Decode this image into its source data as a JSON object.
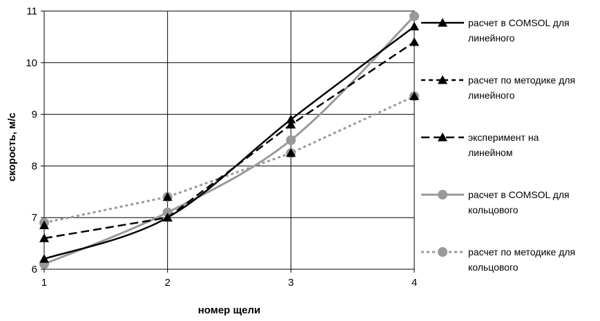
{
  "chart_data": {
    "type": "line",
    "title": "",
    "xlabel": "номер щели",
    "ylabel": "скорость, м/с",
    "x": [
      1,
      2,
      3,
      4
    ],
    "xlim": [
      1,
      4
    ],
    "ylim": [
      6,
      11
    ],
    "x_ticks": [
      "1",
      "2",
      "3",
      "4"
    ],
    "y_ticks": [
      "6",
      "7",
      "8",
      "9",
      "10",
      "11"
    ],
    "grid": true,
    "legend_position": "right",
    "series": [
      {
        "name": "расчет в COMSOL для линейного",
        "legend_lines": [
          "расчет в COMSOL для",
          "линейного"
        ],
        "values": [
          6.2,
          7.0,
          8.9,
          10.7
        ],
        "color": "#000000",
        "dash": "solid",
        "marker": "triangle",
        "smooth": true
      },
      {
        "name": "расчет по методике для линейного",
        "legend_lines": [
          "расчет по методике для",
          "линейного"
        ],
        "values": [
          6.85,
          7.4,
          8.25,
          9.35
        ],
        "color": "#000000",
        "dash": "short-dash",
        "marker": "triangle",
        "smooth": false,
        "line_hidden": true
      },
      {
        "name": "эксперимент на линейном",
        "legend_lines": [
          "эксперимент на",
          "линейном"
        ],
        "values": [
          6.6,
          7.0,
          8.8,
          10.4
        ],
        "color": "#000000",
        "dash": "long-dash",
        "marker": "triangle",
        "smooth": false
      },
      {
        "name": "расчет в COMSOL для кольцового",
        "legend_lines": [
          "расчет в COMSOL для",
          "кольцового"
        ],
        "values": [
          6.1,
          7.1,
          8.5,
          10.9
        ],
        "color": "#999999",
        "dash": "solid",
        "marker": "circle",
        "smooth": true
      },
      {
        "name": "расчет по методике для кольцового",
        "legend_lines": [
          "расчет по методике для",
          "кольцового"
        ],
        "values": [
          6.9,
          7.4,
          8.25,
          9.35
        ],
        "color": "#999999",
        "dash": "dot",
        "marker": "circle",
        "smooth": false
      }
    ]
  }
}
